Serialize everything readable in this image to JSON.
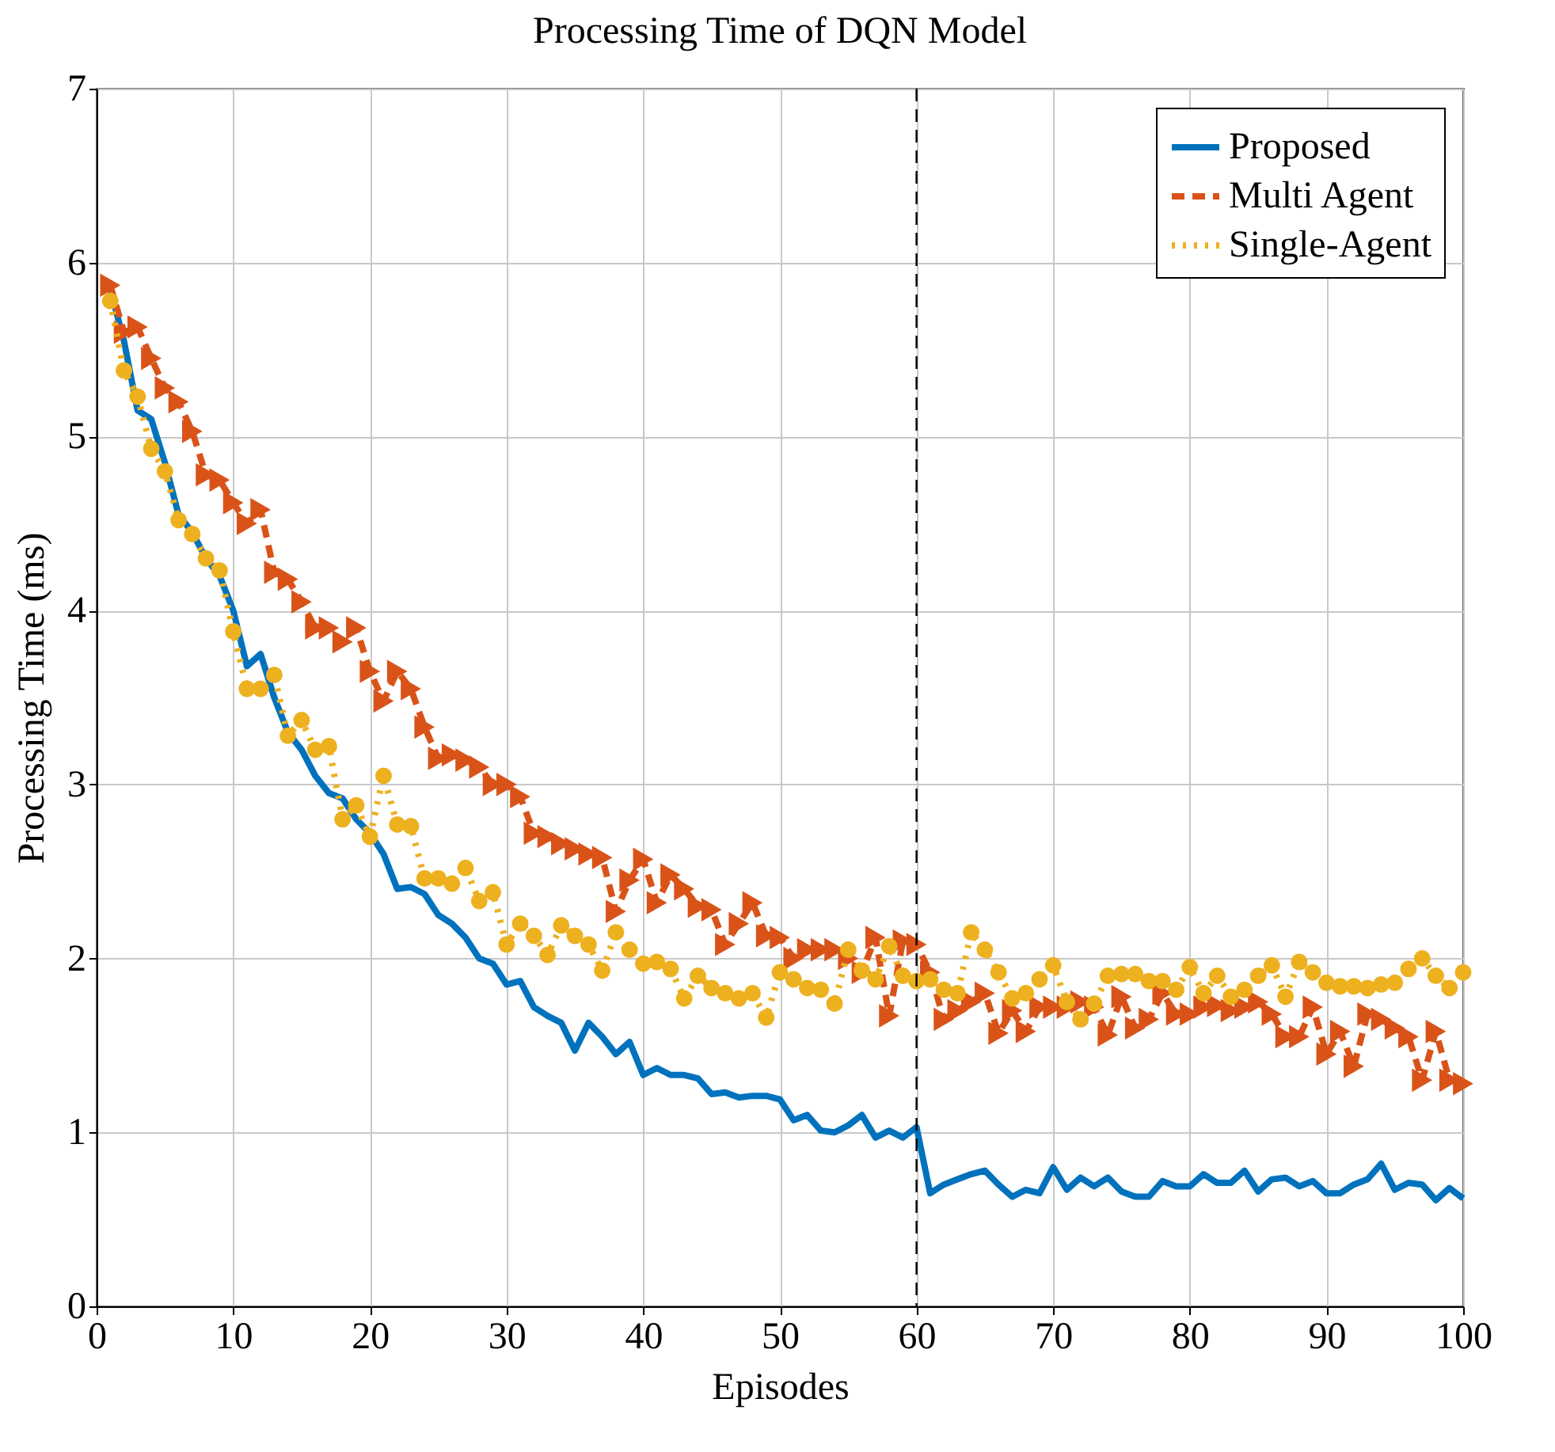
{
  "chart_data": {
    "type": "line",
    "title": "Processing Time of DQN Model",
    "xlabel": "Episodes",
    "ylabel": "Processing Time (ms)",
    "x": [
      1,
      2,
      3,
      4,
      5,
      6,
      7,
      8,
      9,
      10,
      11,
      12,
      13,
      14,
      15,
      16,
      17,
      18,
      19,
      20,
      21,
      22,
      23,
      24,
      25,
      26,
      27,
      28,
      29,
      30,
      31,
      32,
      33,
      34,
      35,
      36,
      37,
      38,
      39,
      40,
      41,
      42,
      43,
      44,
      45,
      46,
      47,
      48,
      49,
      50,
      51,
      52,
      53,
      54,
      55,
      56,
      57,
      58,
      59,
      60,
      61,
      62,
      63,
      64,
      65,
      66,
      67,
      68,
      69,
      70,
      71,
      72,
      73,
      74,
      75,
      76,
      77,
      78,
      79,
      80,
      81,
      82,
      83,
      84,
      85,
      86,
      87,
      88,
      89,
      90,
      91,
      92,
      93,
      94,
      95,
      96,
      97,
      98,
      99,
      100
    ],
    "series": [
      {
        "name": "Proposed",
        "color": "#0072bd",
        "marker": "none",
        "line_style": "solid",
        "values": [
          5.85,
          5.55,
          5.15,
          5.1,
          4.85,
          4.55,
          4.45,
          4.3,
          4.2,
          4.0,
          3.68,
          3.75,
          3.5,
          3.3,
          3.2,
          3.05,
          2.95,
          2.92,
          2.8,
          2.72,
          2.6,
          2.4,
          2.41,
          2.37,
          2.25,
          2.2,
          2.12,
          2.0,
          1.97,
          1.85,
          1.87,
          1.72,
          1.67,
          1.63,
          1.47,
          1.63,
          1.55,
          1.45,
          1.52,
          1.33,
          1.37,
          1.33,
          1.33,
          1.31,
          1.22,
          1.23,
          1.2,
          1.21,
          1.21,
          1.19,
          1.07,
          1.1,
          1.01,
          1.0,
          1.04,
          1.1,
          0.97,
          1.01,
          0.97,
          1.03,
          0.65,
          0.7,
          0.73,
          0.76,
          0.78,
          0.7,
          0.63,
          0.67,
          0.65,
          0.8,
          0.67,
          0.74,
          0.69,
          0.74,
          0.66,
          0.63,
          0.63,
          0.72,
          0.69,
          0.69,
          0.76,
          0.71,
          0.71,
          0.78,
          0.66,
          0.73,
          0.74,
          0.69,
          0.72,
          0.65,
          0.65,
          0.7,
          0.73,
          0.82,
          0.67,
          0.71,
          0.7,
          0.61,
          0.68,
          0.62
        ]
      },
      {
        "name": "Multi Agent",
        "color": "#d95319",
        "marker": "triangle",
        "line_style": "dashed",
        "values": [
          5.87,
          5.6,
          5.63,
          5.45,
          5.28,
          5.2,
          5.03,
          4.78,
          4.75,
          4.62,
          4.5,
          4.58,
          4.22,
          4.18,
          4.05,
          3.9,
          3.9,
          3.82,
          3.9,
          3.65,
          3.48,
          3.65,
          3.55,
          3.33,
          3.15,
          3.17,
          3.14,
          3.1,
          3.0,
          3.0,
          2.93,
          2.72,
          2.7,
          2.66,
          2.63,
          2.6,
          2.58,
          2.27,
          2.45,
          2.57,
          2.32,
          2.48,
          2.4,
          2.3,
          2.28,
          2.08,
          2.2,
          2.32,
          2.13,
          2.12,
          2.0,
          2.05,
          2.05,
          2.05,
          2.0,
          1.92,
          2.12,
          1.67,
          2.1,
          2.08,
          1.92,
          1.65,
          1.7,
          1.75,
          1.8,
          1.57,
          1.7,
          1.58,
          1.72,
          1.72,
          1.72,
          1.75,
          1.72,
          1.56,
          1.78,
          1.6,
          1.65,
          1.8,
          1.68,
          1.68,
          1.72,
          1.73,
          1.7,
          1.72,
          1.75,
          1.68,
          1.55,
          1.55,
          1.72,
          1.45,
          1.58,
          1.38,
          1.68,
          1.65,
          1.6,
          1.55,
          1.3,
          1.58,
          1.3,
          1.28
        ]
      },
      {
        "name": "Single-Agent",
        "color": "#edb120",
        "marker": "circle",
        "line_style": "dotted",
        "values": [
          5.78,
          5.38,
          5.23,
          4.93,
          4.8,
          4.52,
          4.44,
          4.3,
          4.23,
          3.88,
          3.55,
          3.55,
          3.63,
          3.28,
          3.37,
          3.2,
          3.22,
          2.8,
          2.88,
          2.7,
          3.05,
          2.77,
          2.76,
          2.46,
          2.46,
          2.43,
          2.52,
          2.33,
          2.38,
          2.08,
          2.2,
          2.13,
          2.02,
          2.19,
          2.13,
          2.08,
          1.93,
          2.15,
          2.05,
          1.97,
          1.98,
          1.94,
          1.77,
          1.9,
          1.83,
          1.8,
          1.77,
          1.8,
          1.66,
          1.92,
          1.88,
          1.83,
          1.82,
          1.74,
          2.05,
          1.93,
          1.88,
          2.07,
          1.9,
          1.87,
          1.88,
          1.82,
          1.8,
          2.15,
          2.05,
          1.92,
          1.77,
          1.8,
          1.88,
          1.96,
          1.75,
          1.65,
          1.74,
          1.9,
          1.91,
          1.91,
          1.87,
          1.87,
          1.82,
          1.95,
          1.8,
          1.9,
          1.78,
          1.82,
          1.9,
          1.96,
          1.78,
          1.98,
          1.92,
          1.86,
          1.84,
          1.84,
          1.83,
          1.85,
          1.86,
          1.94,
          2.0,
          1.9,
          1.83,
          1.92
        ]
      }
    ],
    "xlim": [
      0,
      100
    ],
    "xticks": [
      0,
      10,
      20,
      30,
      40,
      50,
      60,
      70,
      80,
      90,
      100
    ],
    "ylim": [
      0,
      7
    ],
    "yticks": [
      0,
      1,
      2,
      3,
      4,
      5,
      6,
      7
    ],
    "ref_lines": [
      {
        "axis": "x",
        "value": 60,
        "color": "#000000",
        "line_style": "dashed"
      }
    ],
    "grid": true,
    "legend": "top right"
  }
}
